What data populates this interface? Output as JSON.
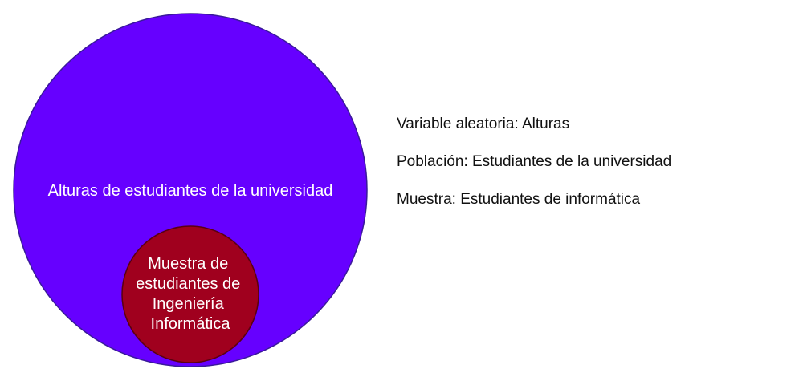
{
  "population_circle": {
    "label": "Alturas de estudiantes de la universidad",
    "fill_color": "#6600ff",
    "stroke_color": "#3a1a9a"
  },
  "sample_circle": {
    "label_lines": [
      "Muestra de",
      "estudiantes de",
      "Ingeniería",
      "Informática"
    ],
    "fill_color": "#a0001e",
    "stroke_color": "#5a0010"
  },
  "legend": {
    "items": [
      {
        "text": "Variable aleatoria: Alturas"
      },
      {
        "text": "Población: Estudiantes de la universidad"
      },
      {
        "text": "Muestra: Estudiantes de informática"
      }
    ]
  }
}
